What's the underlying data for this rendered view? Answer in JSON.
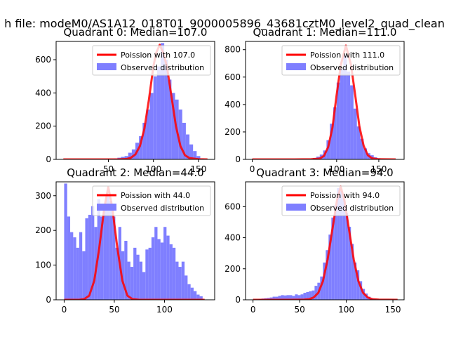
{
  "figure": {
    "suptitle": "h file: modeM0/AS1A12_018T01_9000005896_43681cztM0_level2_quad_clean"
  },
  "colors": {
    "model_line": "#ff0000",
    "observed": "#7f7fff",
    "axes": "#000000",
    "background": "#ffffff"
  },
  "chart_data": [
    {
      "type": "bar",
      "title": "Quadrant 0: Median=107.0",
      "xlabel": "",
      "ylabel": "",
      "xlim": [
        -8,
        168
      ],
      "ylim": [
        0,
        710
      ],
      "xticks": [
        50,
        100,
        150
      ],
      "yticks": [
        0,
        200,
        400,
        600
      ],
      "grid": false,
      "legend_position": "top-right",
      "series": [
        {
          "name": "Poission with 107.0",
          "kind": "line",
          "x": [
            0,
            40,
            60,
            70,
            75,
            80,
            85,
            90,
            95,
            100,
            103,
            107,
            111,
            115,
            120,
            125,
            130,
            135,
            140,
            150,
            160
          ],
          "y": [
            0,
            0,
            0,
            2,
            10,
            30,
            80,
            185,
            360,
            560,
            640,
            690,
            640,
            560,
            380,
            200,
            80,
            25,
            8,
            1,
            0
          ]
        },
        {
          "name": "Observed distribution",
          "kind": "bars",
          "bin_width": 4,
          "x": [
            52,
            56,
            60,
            64,
            68,
            72,
            76,
            80,
            84,
            88,
            92,
            96,
            100,
            104,
            108,
            112,
            116,
            120,
            124,
            128,
            132,
            136,
            140,
            144,
            148,
            152
          ],
          "y": [
            3,
            5,
            10,
            15,
            20,
            40,
            60,
            100,
            140,
            220,
            300,
            400,
            500,
            560,
            700,
            600,
            480,
            400,
            360,
            300,
            220,
            150,
            90,
            50,
            20,
            5
          ]
        }
      ]
    },
    {
      "type": "bar",
      "title": "Quadrant 1: Median=111.0",
      "xlabel": "",
      "ylabel": "",
      "xlim": [
        -8,
        180
      ],
      "ylim": [
        0,
        860
      ],
      "xticks": [
        0,
        100,
        150
      ],
      "yticks": [
        0,
        200,
        400,
        600,
        800
      ],
      "grid": false,
      "legend_position": "top-right",
      "series": [
        {
          "name": "Poission with 111.0",
          "kind": "line",
          "x": [
            0,
            50,
            70,
            80,
            85,
            90,
            95,
            100,
            105,
            111,
            117,
            122,
            127,
            132,
            137,
            142,
            150,
            170
          ],
          "y": [
            0,
            0,
            1,
            6,
            25,
            90,
            230,
            470,
            690,
            830,
            690,
            470,
            240,
            100,
            30,
            8,
            1,
            0
          ]
        },
        {
          "name": "Observed distribution",
          "kind": "bars",
          "bin_width": 4,
          "x": [
            72,
            76,
            80,
            84,
            88,
            92,
            96,
            100,
            104,
            108,
            112,
            116,
            120,
            124,
            128,
            132,
            136,
            140,
            144,
            148,
            152
          ],
          "y": [
            10,
            20,
            35,
            65,
            140,
            260,
            380,
            560,
            660,
            760,
            640,
            540,
            370,
            240,
            150,
            80,
            45,
            30,
            15,
            8,
            3
          ]
        }
      ]
    },
    {
      "type": "bar",
      "title": "Quadrant 2: Median=44.0",
      "xlabel": "",
      "ylabel": "",
      "xlim": [
        -8,
        150
      ],
      "ylim": [
        0,
        340
      ],
      "xticks": [
        0,
        50,
        100
      ],
      "yticks": [
        0,
        100,
        200,
        300
      ],
      "grid": false,
      "legend_position": "top-right",
      "series": [
        {
          "name": "Poission with 44.0",
          "kind": "line",
          "x": [
            0,
            15,
            20,
            25,
            30,
            35,
            40,
            44,
            48,
            53,
            58,
            63,
            68,
            75,
            90,
            140
          ],
          "y": [
            0,
            0,
            2,
            12,
            55,
            150,
            265,
            325,
            265,
            150,
            55,
            12,
            2,
            0,
            0,
            0
          ]
        },
        {
          "name": "Observed distribution",
          "kind": "bars",
          "bin_width": 3,
          "x": [
            0,
            3,
            6,
            9,
            12,
            15,
            18,
            21,
            24,
            27,
            30,
            33,
            36,
            39,
            42,
            45,
            48,
            51,
            54,
            57,
            60,
            63,
            66,
            69,
            72,
            75,
            78,
            81,
            84,
            87,
            90,
            93,
            96,
            99,
            102,
            105,
            108,
            111,
            114,
            117,
            120,
            123,
            126,
            129,
            132,
            135
          ],
          "y": [
            335,
            240,
            195,
            180,
            150,
            195,
            140,
            235,
            245,
            270,
            210,
            290,
            240,
            270,
            300,
            285,
            240,
            150,
            210,
            140,
            170,
            110,
            95,
            150,
            130,
            110,
            80,
            145,
            150,
            180,
            210,
            175,
            165,
            210,
            185,
            160,
            150,
            110,
            95,
            110,
            70,
            45,
            35,
            25,
            15,
            10
          ]
        }
      ]
    },
    {
      "type": "bar",
      "title": "Quadrant 3: Median=94.0",
      "xlabel": "",
      "ylabel": "",
      "xlim": [
        -8,
        162
      ],
      "ylim": [
        0,
        760
      ],
      "xticks": [
        0,
        50,
        100,
        150
      ],
      "yticks": [
        0,
        200,
        400,
        600
      ],
      "grid": false,
      "legend_position": "top-right",
      "series": [
        {
          "name": "Poission with 94.0",
          "kind": "line",
          "x": [
            0,
            40,
            55,
            60,
            65,
            70,
            75,
            80,
            85,
            90,
            94,
            98,
            103,
            108,
            113,
            118,
            123,
            128,
            135,
            155
          ],
          "y": [
            0,
            0,
            1,
            4,
            15,
            45,
            120,
            260,
            450,
            640,
            730,
            640,
            450,
            260,
            120,
            45,
            15,
            4,
            1,
            0
          ]
        },
        {
          "name": "Observed distribution",
          "kind": "bars",
          "bin_width": 3,
          "x": [
            6,
            9,
            12,
            15,
            18,
            21,
            24,
            27,
            30,
            33,
            36,
            39,
            42,
            45,
            48,
            51,
            54,
            57,
            60,
            63,
            66,
            69,
            72,
            75,
            78,
            81,
            84,
            87,
            90,
            93,
            96,
            99,
            102,
            105,
            108,
            111,
            114,
            117,
            120,
            123,
            126,
            129,
            132
          ],
          "y": [
            5,
            8,
            10,
            12,
            15,
            20,
            20,
            25,
            30,
            28,
            30,
            30,
            25,
            35,
            30,
            35,
            45,
            50,
            55,
            60,
            90,
            110,
            150,
            240,
            320,
            420,
            530,
            610,
            720,
            700,
            650,
            560,
            470,
            360,
            240,
            190,
            120,
            70,
            40,
            20,
            10,
            5,
            3
          ]
        }
      ]
    }
  ]
}
